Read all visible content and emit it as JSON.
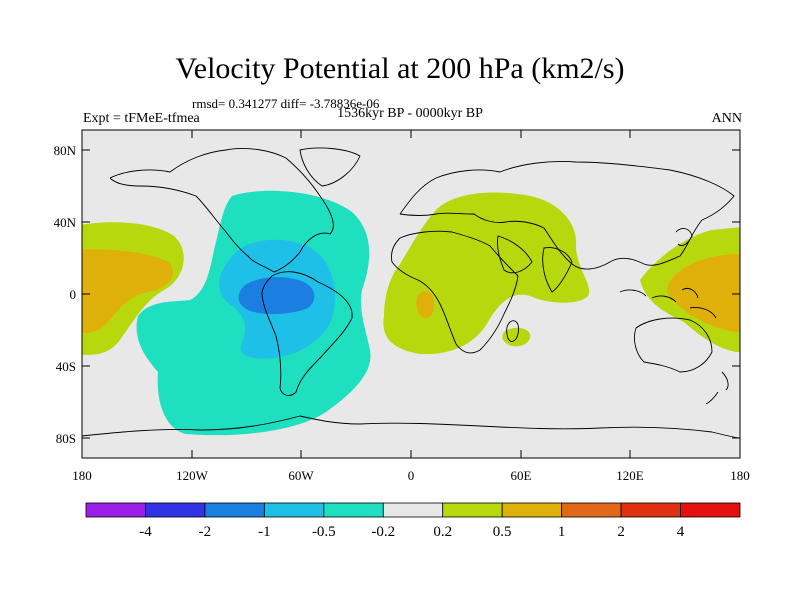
{
  "title": "Velocity Potential at 200 hPa (km2/s)",
  "stats": "rmsd= 0.341277 diff= -3.78836e-06",
  "experiment": "Expt = tFMeE-tfmea",
  "period": "1536kyr BP - 0000kyr BP",
  "season": "ANN",
  "axes": {
    "lat_ticks": [
      "80N",
      "40N",
      "0",
      "40S",
      "80S"
    ],
    "lon_ticks": [
      "180",
      "120W",
      "60W",
      "0",
      "60E",
      "120E",
      "180"
    ]
  },
  "colorbar": {
    "labels": [
      "-4",
      "-2",
      "-1",
      "-0.5",
      "-0.2",
      "0.2",
      "0.5",
      "1",
      "2",
      "4"
    ],
    "colors": [
      "#9a1fe8",
      "#3333e6",
      "#1a7fe0",
      "#1ec0e8",
      "#1ee0c0",
      "#e8e8e8",
      "#b8d80e",
      "#e0b00a",
      "#e06818",
      "#e03010",
      "#e61010"
    ]
  },
  "palette": {
    "background": "#e8e8e8",
    "cyan_light": "#1ee0c0",
    "cyan": "#1ec0e8",
    "blue": "#1a7fe0",
    "green": "#b8d80e",
    "orange": "#e0b00a"
  }
}
